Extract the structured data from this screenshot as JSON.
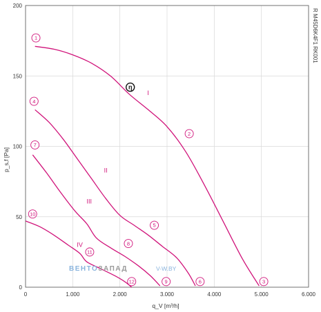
{
  "chart_data": {
    "type": "line",
    "title": "",
    "xlabel": "q_V [m³/h]",
    "ylabel": "p_s,f [Pa]",
    "side_code": "R M45D6K4F1 RK001",
    "xlim": [
      0,
      6000
    ],
    "ylim": [
      0,
      200
    ],
    "x_ticks": [
      "0",
      "1.000",
      "2.000",
      "3.000",
      "4.000",
      "5.000",
      "6.000"
    ],
    "y_ticks": [
      "0",
      "50",
      "100",
      "150",
      "200"
    ],
    "grid": true,
    "colors": {
      "curve": "#d0137a",
      "grid": "#d8d8d8",
      "axis": "#555555"
    },
    "series": [
      {
        "name": "I",
        "x": [
          200,
          600,
          1000,
          1400,
          1800,
          2200,
          2600,
          3000,
          3400,
          3800,
          4200,
          4600,
          4950
        ],
        "y": [
          171,
          169,
          165,
          159,
          150,
          137,
          126,
          114,
          96,
          72,
          46,
          20,
          1
        ]
      },
      {
        "name": "II",
        "x": [
          200,
          500,
          800,
          1100,
          1400,
          1700,
          2000,
          2300,
          2600,
          2900,
          3200,
          3450,
          3600
        ],
        "y": [
          126,
          117,
          105,
          91,
          77,
          63,
          51,
          44,
          37,
          29,
          21,
          10,
          1
        ]
      },
      {
        "name": "III",
        "x": [
          150,
          450,
          750,
          1050,
          1300,
          1500,
          1800,
          2100,
          2400,
          2650,
          2850
        ],
        "y": [
          94,
          81,
          67,
          54,
          45,
          35,
          28,
          22,
          15,
          8,
          1
        ]
      },
      {
        "name": "IV",
        "x": [
          0,
          300,
          600,
          900,
          1150,
          1300,
          1600,
          1900,
          2100,
          2250
        ],
        "y": [
          47,
          43,
          37,
          30,
          24,
          18,
          13,
          8,
          4,
          0
        ]
      }
    ],
    "curve_labels": [
      {
        "text": "I",
        "x": 2600,
        "y": 138
      },
      {
        "text": "II",
        "x": 1700,
        "y": 83
      },
      {
        "text": "III",
        "x": 1350,
        "y": 61
      },
      {
        "text": "IV",
        "x": 1150,
        "y": 30
      }
    ],
    "point_markers": [
      {
        "text": "1",
        "x": 220,
        "y": 177
      },
      {
        "text": "2",
        "x": 3470,
        "y": 109
      },
      {
        "text": "3",
        "x": 5050,
        "y": 4
      },
      {
        "text": "4",
        "x": 180,
        "y": 132
      },
      {
        "text": "5",
        "x": 2730,
        "y": 44
      },
      {
        "text": "6",
        "x": 3700,
        "y": 4
      },
      {
        "text": "7",
        "x": 200,
        "y": 101
      },
      {
        "text": "8",
        "x": 2180,
        "y": 31
      },
      {
        "text": "9",
        "x": 2980,
        "y": 4
      },
      {
        "text": "10",
        "x": 150,
        "y": 52
      },
      {
        "text": "11",
        "x": 1360,
        "y": 25
      },
      {
        "text": "12",
        "x": 2250,
        "y": 4
      }
    ],
    "operating_point": {
      "text": "η",
      "x": 2220,
      "y": 142
    }
  },
  "watermark": {
    "brand_a": "ВЕНТО",
    "brand_b": "ЗАПАД",
    "site": "V-W.BY"
  }
}
